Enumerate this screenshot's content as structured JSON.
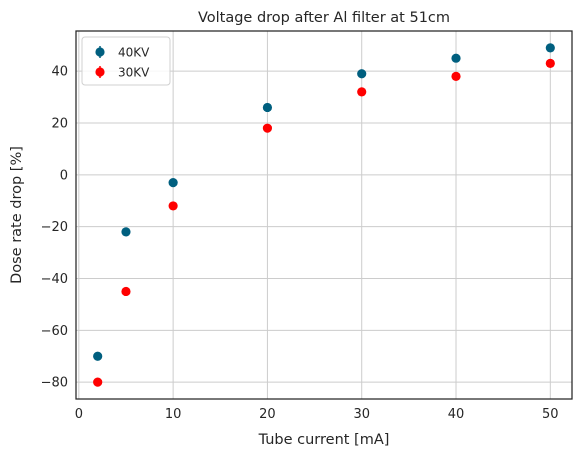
{
  "chart_data": {
    "type": "scatter",
    "title": "Voltage drop after Al filter at 51cm",
    "xlabel": "Tube current [mA]",
    "ylabel": "Dose rate drop [%]",
    "xlim": [
      -0.3,
      52.3
    ],
    "ylim": [
      -86.5,
      55.5
    ],
    "xticks": [
      0,
      10,
      20,
      30,
      40,
      50
    ],
    "yticks": [
      -80,
      -60,
      -40,
      -20,
      0,
      20,
      40
    ],
    "xtick_labels": [
      "0",
      "10",
      "20",
      "30",
      "40",
      "50"
    ],
    "ytick_labels": [
      "−80",
      "−60",
      "−40",
      "−20",
      "0",
      "20",
      "40"
    ],
    "grid": true,
    "legend_position": "top-left",
    "error_bars": true,
    "series": [
      {
        "name": "40KV",
        "color": "#005f7f",
        "x": [
          2,
          5,
          10,
          20,
          30,
          40,
          50
        ],
        "y": [
          -70,
          -22,
          -3,
          26,
          39,
          45,
          49
        ]
      },
      {
        "name": "30KV",
        "color": "#ff0000",
        "x": [
          2,
          5,
          10,
          20,
          30,
          40,
          50
        ],
        "y": [
          -80,
          -45,
          -12,
          18,
          32,
          38,
          43
        ]
      }
    ]
  }
}
